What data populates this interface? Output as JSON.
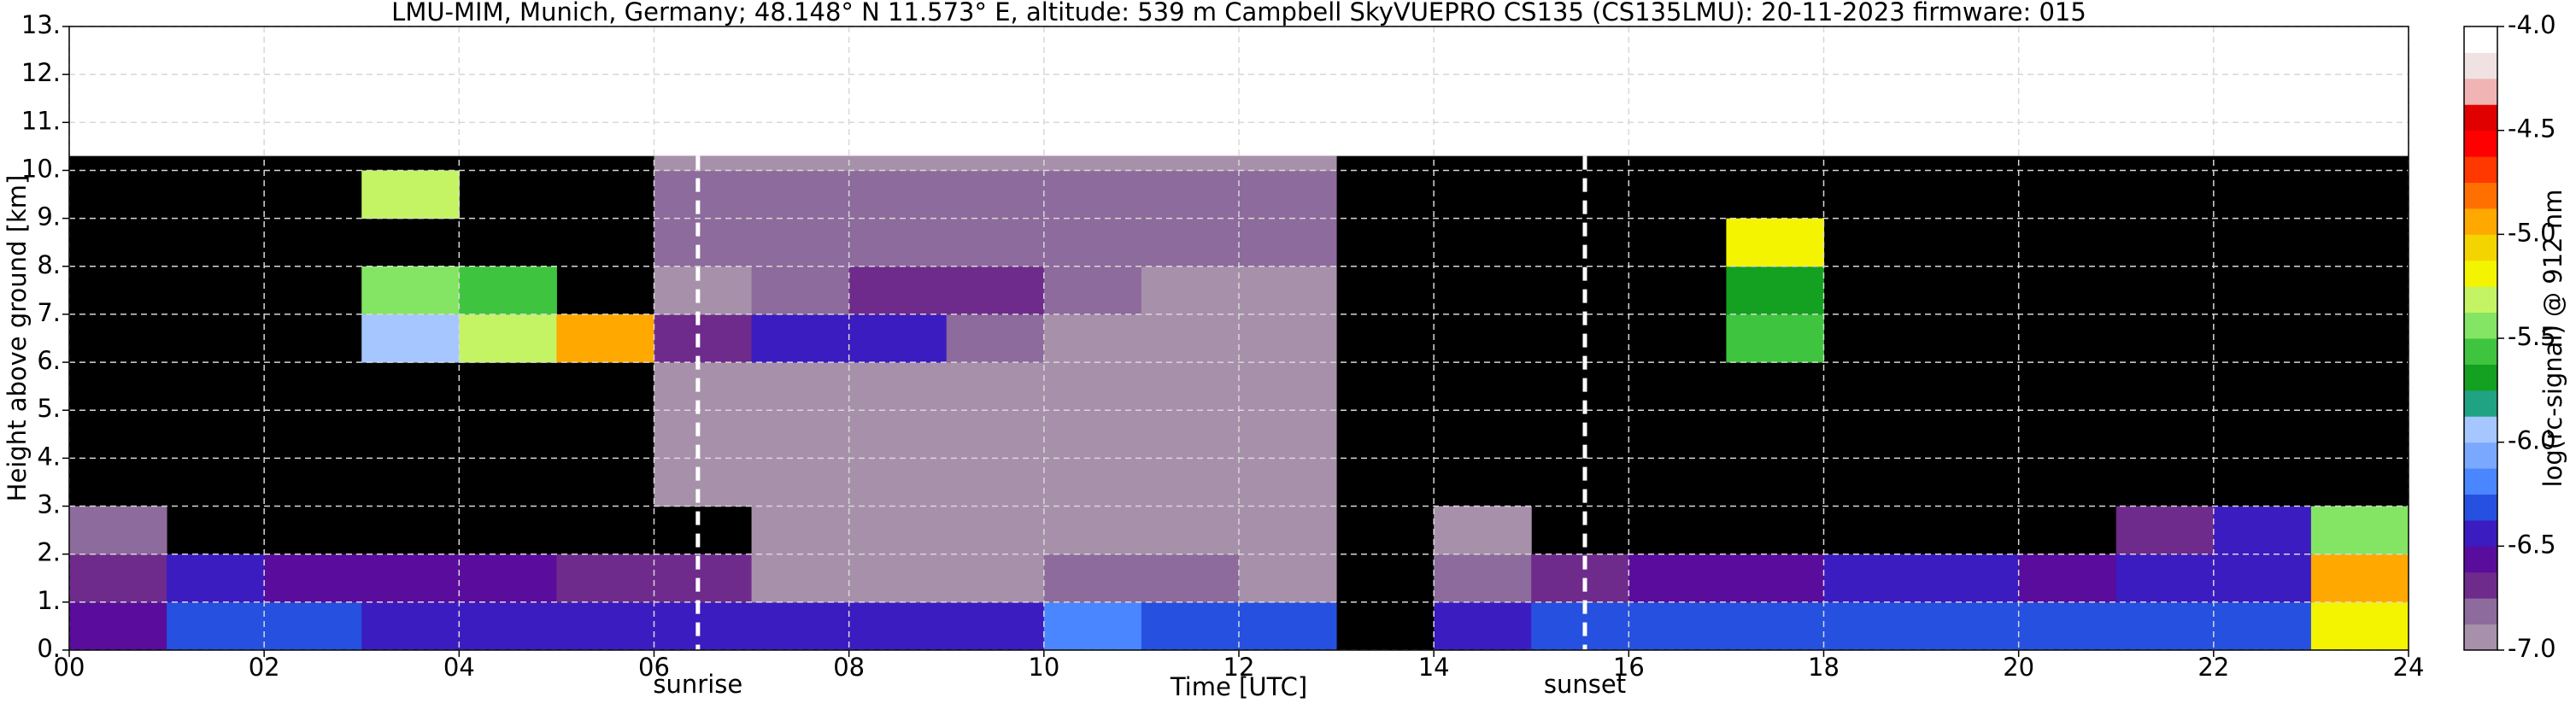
{
  "chart_data": {
    "type": "heatmap",
    "title": "LMU-MIM, Munich, Germany; 48.148° N 11.573° E, altitude: 539 m    Campbell SkyVUEPRO CS135 (CS135LMU): 20-11-2023    firmware: 015",
    "x_label": "Time [UTC]",
    "y_label": "Height above ground [km]",
    "xlim": [
      0,
      24
    ],
    "xticks": [
      {
        "value": 0,
        "label": "00"
      },
      {
        "value": 2,
        "label": "02"
      },
      {
        "value": 4,
        "label": "04"
      },
      {
        "value": 6,
        "label": "06"
      },
      {
        "value": 8,
        "label": "08"
      },
      10,
      12,
      14,
      16,
      18,
      20,
      22,
      24
    ],
    "ylim": [
      0,
      13
    ],
    "yticks": [
      {
        "value": 0,
        "label": "0."
      },
      {
        "value": 1,
        "label": "1."
      },
      {
        "value": 2,
        "label": "2."
      },
      {
        "value": 3,
        "label": "3."
      },
      {
        "value": 4,
        "label": "4."
      },
      {
        "value": 5,
        "label": "5."
      },
      {
        "value": 6,
        "label": "6."
      },
      {
        "value": 7,
        "label": "7."
      },
      {
        "value": 8,
        "label": "8."
      },
      {
        "value": 9,
        "label": "9."
      },
      {
        "value": 10,
        "label": "10."
      },
      {
        "value": 11,
        "label": "11."
      },
      {
        "value": 12,
        "label": "12."
      },
      {
        "value": 13,
        "label": "13."
      }
    ],
    "grid": true,
    "xbins": [
      0,
      1,
      2,
      3,
      4,
      5,
      6,
      7,
      8,
      9,
      10,
      11,
      12,
      13,
      14,
      15,
      16,
      17,
      18,
      19,
      20,
      21,
      22,
      23,
      24
    ],
    "ybins": [
      0,
      1,
      2,
      3,
      4,
      5,
      6,
      7,
      8,
      9,
      10,
      10.3
    ],
    "z": [
      [
        -6.6,
        -6.3,
        -6.3,
        -6.4,
        -6.4,
        -6.4,
        -6.4,
        -6.4,
        -6.4,
        -6.4,
        -6.2,
        -6.3,
        -6.3,
        null,
        -6.4,
        -6.3,
        -6.3,
        -6.3,
        -6.3,
        -6.3,
        -6.3,
        -6.3,
        -6.3,
        -5.2
      ],
      [
        -6.7,
        -6.5,
        -6.6,
        -6.6,
        -6.6,
        -6.7,
        -6.7,
        -6.9,
        -6.9,
        -6.9,
        -6.8,
        -6.8,
        -6.9,
        null,
        -6.8,
        -6.7,
        -6.6,
        -6.6,
        -6.5,
        -6.5,
        -6.6,
        -6.4,
        -6.5,
        -5.0
      ],
      [
        -6.8,
        null,
        null,
        null,
        null,
        null,
        null,
        -6.9,
        -6.9,
        -6.9,
        -6.9,
        -6.9,
        -6.9,
        null,
        -6.9,
        null,
        null,
        null,
        null,
        null,
        null,
        -6.7,
        -6.5,
        -5.5
      ],
      [
        null,
        null,
        null,
        null,
        null,
        null,
        -6.9,
        -6.9,
        -6.9,
        -6.9,
        -6.9,
        -6.9,
        -6.9,
        null,
        null,
        null,
        null,
        null,
        null,
        null,
        null,
        null,
        null,
        null
      ],
      [
        null,
        null,
        null,
        null,
        null,
        null,
        -6.9,
        -6.9,
        -6.9,
        -6.9,
        -6.9,
        -6.9,
        -6.9,
        null,
        null,
        null,
        null,
        null,
        null,
        null,
        null,
        null,
        null,
        null
      ],
      [
        null,
        null,
        null,
        null,
        null,
        null,
        -6.9,
        -6.9,
        -6.9,
        -6.9,
        -6.9,
        -6.9,
        -6.9,
        null,
        null,
        null,
        null,
        null,
        null,
        null,
        null,
        null,
        null,
        null
      ],
      [
        null,
        null,
        null,
        -6.0,
        -5.3,
        -5.0,
        -6.7,
        -6.5,
        -6.4,
        -6.8,
        -6.9,
        -6.9,
        -6.9,
        null,
        null,
        null,
        null,
        -5.6,
        null,
        null,
        null,
        null,
        null,
        null
      ],
      [
        null,
        null,
        null,
        -5.4,
        -5.6,
        null,
        -6.9,
        -6.8,
        -6.7,
        -6.7,
        -6.8,
        -6.9,
        -6.9,
        null,
        null,
        null,
        null,
        -5.7,
        null,
        null,
        null,
        null,
        null,
        null
      ],
      [
        null,
        null,
        null,
        null,
        null,
        null,
        -6.8,
        -6.8,
        -6.8,
        -6.8,
        -6.8,
        -6.8,
        -6.8,
        null,
        null,
        null,
        null,
        -5.2,
        null,
        null,
        null,
        null,
        null,
        null
      ],
      [
        null,
        null,
        null,
        -5.3,
        null,
        null,
        -6.8,
        -6.8,
        -6.8,
        -6.8,
        -6.8,
        -6.8,
        -6.8,
        null,
        null,
        null,
        null,
        null,
        null,
        null,
        null,
        null,
        null,
        null
      ],
      [
        null,
        null,
        null,
        null,
        null,
        null,
        -6.9,
        -6.9,
        -6.9,
        -6.9,
        -6.9,
        -6.9,
        -6.9,
        null,
        null,
        null,
        null,
        null,
        null,
        null,
        null,
        null,
        null,
        null
      ]
    ],
    "annotations": [
      {
        "text": "sunrise",
        "x": 6.45
      },
      {
        "text": "sunset",
        "x": 15.55
      }
    ],
    "colorbar": {
      "label": "log(rc-signal) @ 912 nm",
      "lim": [
        -7,
        -4
      ],
      "ticks": [
        {
          "value": -4,
          "label": "-4.0"
        },
        -4.5,
        {
          "value": -5,
          "label": "-5.0"
        },
        -5.5,
        {
          "value": -6,
          "label": "-6.0"
        },
        -6.5,
        {
          "value": -7,
          "label": "-7.0"
        }
      ],
      "colors": [
        "#a791aa",
        "#8d6b9c",
        "#6e2b8c",
        "#5a0c9c",
        "#3a1cc0",
        "#2550e0",
        "#4a86ff",
        "#7aa8ff",
        "#a6c6ff",
        "#1fa383",
        "#14a020",
        "#3fc43f",
        "#84e464",
        "#c4f464",
        "#f4f400",
        "#f4d400",
        "#ffa800",
        "#ff7000",
        "#ff3800",
        "#ff0000",
        "#e00000",
        "#f0b4b4",
        "#f0e2e2",
        "#ffffff"
      ]
    }
  }
}
